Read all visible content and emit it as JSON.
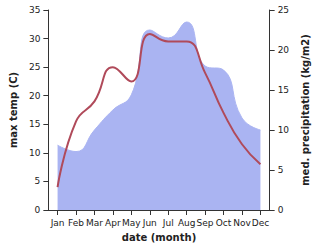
{
  "chart_data": {
    "type": "line",
    "x_label": "date (month)",
    "y_label": "max temp (C)",
    "y2_label": "med. precipitation (kg/m2)",
    "categories": [
      "Jan",
      "Feb",
      "Mar",
      "Apr",
      "May",
      "Jun",
      "Jul",
      "Aug",
      "Sep",
      "Oct",
      "Nov",
      "Dec"
    ],
    "series": [
      {
        "name": "max temp",
        "type": "line",
        "axis": "y",
        "color": "#b04a5a",
        "values": [
          4,
          15.5,
          19,
          25,
          22.5,
          30.8,
          29.5,
          29.5,
          24,
          17,
          11.5,
          8
        ]
      },
      {
        "name": "med. precipitation",
        "type": "area",
        "axis": "y2",
        "color": "#aab4f2",
        "values": [
          8.1,
          7.3,
          10,
          12.5,
          14.4,
          22.5,
          21.5,
          23.5,
          18,
          17.5,
          11.5,
          10
        ]
      }
    ],
    "ylim": [
      0,
      35
    ],
    "yticks": [
      0,
      5,
      10,
      15,
      20,
      25,
      30,
      35
    ],
    "y2lim": [
      0,
      25
    ],
    "y2ticks": [
      0,
      5,
      10,
      15,
      20,
      25
    ],
    "grid": false
  }
}
